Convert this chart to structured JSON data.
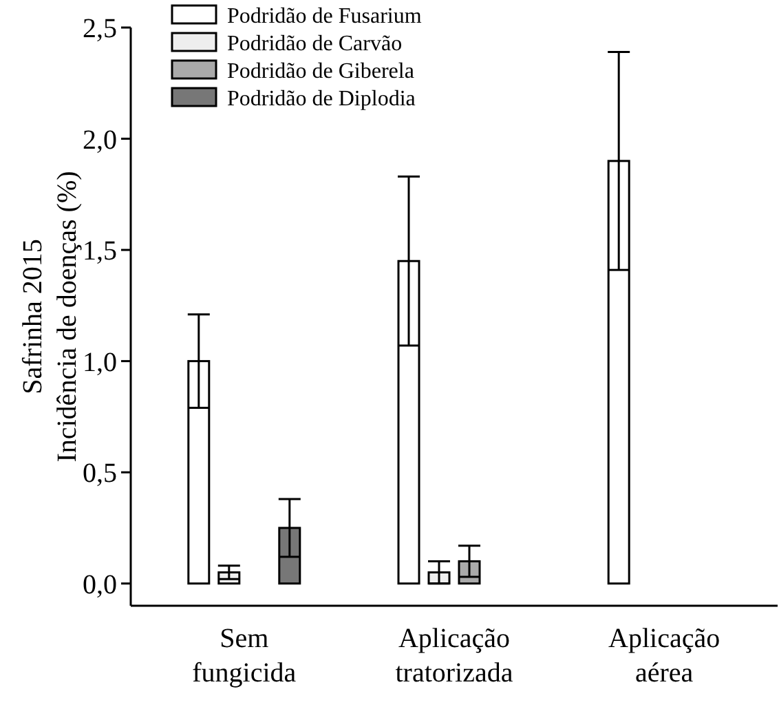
{
  "chart_data": {
    "type": "bar",
    "ylabel": "Safrinha 2015\nIncidência de doenças (%)",
    "categories": [
      "Sem fungicida",
      "Aplicação tratorizada",
      "Aplicação aérea"
    ],
    "series": [
      {
        "name": "Podridão de Fusarium",
        "color": "#ffffff",
        "values": [
          1.0,
          1.45,
          1.9
        ],
        "errors": [
          0.21,
          0.38,
          0.49
        ]
      },
      {
        "name": "Podridão de Carvão",
        "color": "#eeeeee",
        "values": [
          0.05,
          0.05,
          0
        ],
        "errors": [
          0.03,
          0.05,
          null
        ]
      },
      {
        "name": "Podridão de Giberela",
        "color": "#aaaaaa",
        "values": [
          0,
          0.1,
          0
        ],
        "errors": [
          null,
          0.07,
          null
        ]
      },
      {
        "name": "Podridão de Diplodia",
        "color": "#777777",
        "values": [
          0.25,
          0,
          0
        ],
        "errors": [
          0.13,
          null,
          null
        ]
      }
    ],
    "ylim": [
      -0.1,
      2.5
    ],
    "yticks": [
      {
        "value": 0,
        "label": "0,0"
      },
      {
        "value": 0.5,
        "label": "0,5"
      },
      {
        "value": 1,
        "label": "1,0"
      },
      {
        "value": 1.5,
        "label": "1,5"
      },
      {
        "value": 2,
        "label": "2,0"
      },
      {
        "value": 2.5,
        "label": "2,5"
      }
    ],
    "legend": "top left",
    "grid": false
  }
}
